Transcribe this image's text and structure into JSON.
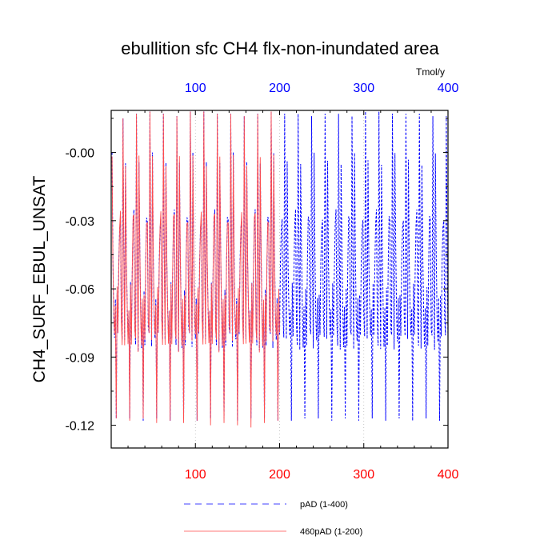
{
  "chart_data": {
    "type": "line",
    "title": "ebullition sfc CH4 flx-non-inundated area",
    "ylabel": "CH4_SURF_EBUL_UNSAT",
    "top_axis_unit": "Tmol/y",
    "xlim": [
      0,
      400
    ],
    "ylim": [
      -0.13,
      0.0185
    ],
    "x_ticks_bottom": [
      "100",
      "200",
      "300",
      "400"
    ],
    "x_ticks_top": [
      "100",
      "200",
      "300",
      "400"
    ],
    "y_ticks": [
      "-0.00",
      "-0.03",
      "-0.06",
      "-0.09",
      "-0.12"
    ],
    "y_tick_values": [
      0.0,
      -0.03,
      -0.06,
      -0.09,
      -0.12
    ],
    "grid_x": [
      100,
      200,
      300
    ],
    "colors": {
      "pAD": "#0000ff",
      "460pAD": "#ff4d4d",
      "bottom_ticks": "#ff0000",
      "top_ticks": "#0000ff"
    },
    "cycle_length_years": 16,
    "cycle_profile": [
      -0.003,
      -0.045,
      -0.07,
      -0.083,
      -0.067,
      -0.118,
      -0.06,
      -0.082,
      -0.05,
      -0.031,
      -0.028,
      -0.075,
      -0.082,
      0.015,
      -0.045,
      -0.085
    ],
    "series": [
      {
        "name": "pAD (1-400)",
        "x_range": [
          1,
          400
        ],
        "cycle_peaks": [
          0.015,
          0.017,
          0.018,
          0.017,
          0.016,
          0.018,
          0.018,
          0.017,
          0.017,
          0.016,
          0.017,
          0.018,
          0.017,
          0.017,
          0.016,
          0.017,
          0.017,
          0.016,
          0.018,
          0.018,
          0.017,
          0.017,
          0.017,
          0.016,
          0.016
        ],
        "cycle_troughs": [
          -0.117,
          -0.117,
          -0.118,
          -0.117,
          -0.118,
          -0.117,
          -0.118,
          -0.117,
          -0.117,
          -0.118,
          -0.117,
          -0.117,
          -0.118,
          -0.118,
          -0.117,
          -0.117,
          -0.118,
          -0.117,
          -0.118,
          -0.117,
          -0.118,
          -0.117,
          -0.118,
          -0.117,
          -0.118
        ]
      },
      {
        "name": "460pAD (1-200)",
        "x_range": [
          1,
          200
        ],
        "cycle_peaks": [
          0.015,
          0.017,
          0.018,
          0.017,
          0.016,
          0.018,
          0.018,
          0.017,
          0.017,
          0.016,
          0.017,
          0.018,
          0.017
        ],
        "cycle_troughs": [
          -0.117,
          -0.118,
          -0.117,
          -0.119,
          -0.118,
          -0.119,
          -0.118,
          -0.12,
          -0.119,
          -0.12,
          -0.121,
          -0.119,
          -0.118
        ]
      }
    ]
  }
}
